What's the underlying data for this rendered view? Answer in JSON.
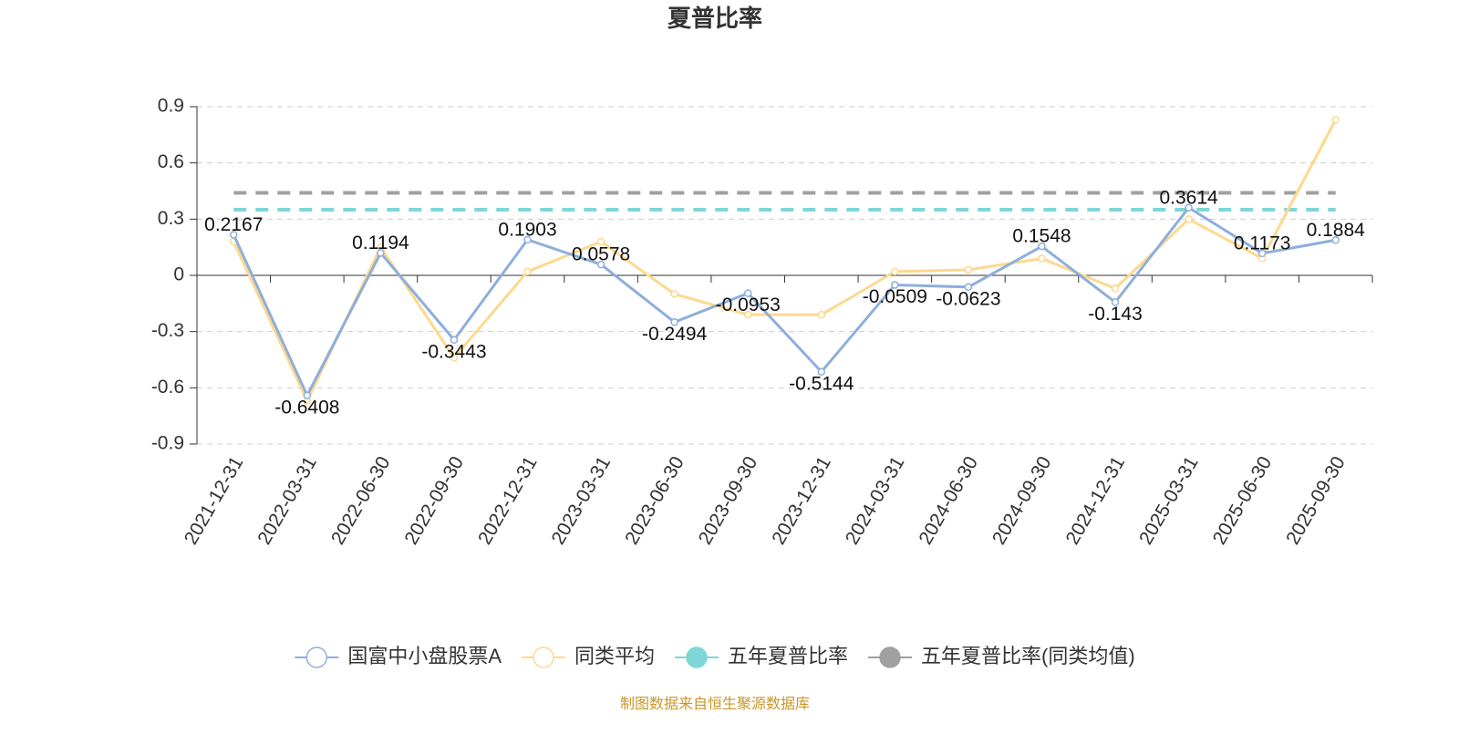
{
  "chart_data": {
    "type": "line",
    "title": "夏普比率",
    "categories": [
      "2021-12-31",
      "2022-03-31",
      "2022-06-30",
      "2022-09-30",
      "2022-12-31",
      "2023-03-31",
      "2023-06-30",
      "2023-09-30",
      "2023-12-31",
      "2024-03-31",
      "2024-06-30",
      "2024-09-30",
      "2024-12-31",
      "2025-03-31",
      "2025-06-30",
      "2025-09-30"
    ],
    "series": [
      {
        "name": "国富中小盘股票A",
        "color": "#8eaedc",
        "data_labels": true,
        "values": [
          0.2167,
          -0.6408,
          0.1194,
          -0.3443,
          0.1903,
          0.0578,
          -0.2494,
          -0.0953,
          -0.5144,
          -0.0509,
          -0.0623,
          0.1548,
          -0.143,
          0.3614,
          0.1173,
          0.1884
        ]
      },
      {
        "name": "同类平均",
        "color": "#fdd98e",
        "data_labels": false,
        "values": [
          0.18,
          -0.67,
          0.15,
          -0.44,
          0.02,
          0.18,
          -0.1,
          -0.21,
          -0.21,
          0.02,
          0.03,
          0.09,
          -0.07,
          0.3,
          0.09,
          0.83
        ]
      }
    ],
    "hlines": [
      {
        "name": "五年夏普比率",
        "color": "#7fd6d6",
        "value": 0.35
      },
      {
        "name": "五年夏普比率(同类均值)",
        "color": "#a0a0a0",
        "value": 0.44
      }
    ],
    "ylim": [
      -0.9,
      0.9
    ],
    "yticks": [
      -0.9,
      -0.6,
      -0.3,
      0,
      0.3,
      0.6,
      0.9
    ],
    "grid": true,
    "legend": "bottom",
    "source": "制图数据来自恒生聚源数据库"
  }
}
